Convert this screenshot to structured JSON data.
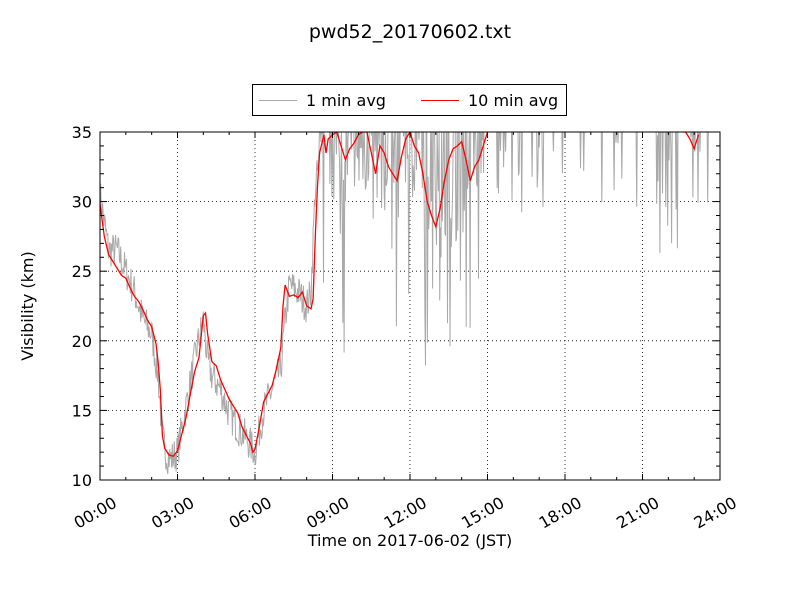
{
  "chart_data": {
    "type": "line",
    "title": "pwd52_20170602.txt",
    "xlabel": "Time on 2017-06-02 (JST)",
    "ylabel": "Visibility (km)",
    "x_ticks": [
      "00:00",
      "03:00",
      "06:00",
      "09:00",
      "12:00",
      "15:00",
      "18:00",
      "21:00",
      "24:00"
    ],
    "y_ticks": [
      10,
      15,
      20,
      25,
      30,
      35
    ],
    "xlim": [
      "2017-06-02 00:00",
      "2017-06-03 00:00"
    ],
    "ylim": [
      10,
      35
    ],
    "grid": true,
    "legend_position": "top-center",
    "series": [
      {
        "name": "1 min avg",
        "color": "#a9a9a9",
        "style": "noisy",
        "x": [
          "00:00",
          "00:20",
          "00:40",
          "01:00",
          "01:20",
          "01:40",
          "02:00",
          "02:15",
          "02:25",
          "02:35",
          "02:45",
          "03:00",
          "03:15",
          "03:30",
          "03:45",
          "04:00",
          "04:10",
          "04:20",
          "04:40",
          "05:00",
          "05:20",
          "05:40",
          "05:50",
          "06:00",
          "06:20",
          "06:40",
          "07:00",
          "07:10",
          "07:20",
          "07:40",
          "08:00",
          "08:10",
          "08:20",
          "08:35",
          "08:45",
          "09:00",
          "09:30",
          "10:00",
          "10:30",
          "11:00",
          "11:30",
          "12:00",
          "12:30",
          "13:00",
          "13:20",
          "13:40",
          "14:00",
          "14:20",
          "15:00",
          "16:00",
          "17:00",
          "18:00",
          "19:00",
          "20:00",
          "21:00",
          "21:30",
          "22:00",
          "22:30",
          "23:00",
          "23:20",
          "23:40",
          "24:00"
        ],
        "y": [
          30.5,
          26.5,
          26.5,
          25,
          23.5,
          21.5,
          20.5,
          17.5,
          13,
          11.8,
          11.5,
          12,
          14.5,
          17,
          19.5,
          21.5,
          18.5,
          17.5,
          16.5,
          14.8,
          13.8,
          13,
          12.5,
          12,
          15,
          16.5,
          18,
          21.5,
          24,
          23.5,
          22.5,
          23.5,
          31,
          34,
          35,
          33,
          32,
          33,
          34,
          32,
          34,
          33,
          31,
          30,
          28,
          29,
          32,
          33,
          35,
          35,
          35,
          35,
          35,
          35,
          35,
          35,
          35,
          35,
          35,
          35,
          35,
          35
        ]
      },
      {
        "name": "10 min avg",
        "color": "#ff0000",
        "style": "smooth",
        "x": [
          "00:00",
          "00:10",
          "00:20",
          "00:30",
          "00:40",
          "00:50",
          "01:00",
          "01:10",
          "01:20",
          "01:30",
          "01:40",
          "01:50",
          "02:00",
          "02:10",
          "02:15",
          "02:20",
          "02:25",
          "02:30",
          "02:40",
          "02:50",
          "03:00",
          "03:10",
          "03:20",
          "03:30",
          "03:40",
          "03:50",
          "04:00",
          "04:05",
          "04:10",
          "04:20",
          "04:30",
          "04:40",
          "04:50",
          "05:00",
          "05:10",
          "05:20",
          "05:30",
          "05:40",
          "05:50",
          "05:55",
          "06:00",
          "06:10",
          "06:20",
          "06:30",
          "06:40",
          "06:50",
          "07:00",
          "07:05",
          "07:10",
          "07:20",
          "07:30",
          "07:40",
          "07:50",
          "08:00",
          "08:10",
          "08:15",
          "08:20",
          "08:25",
          "08:30",
          "08:40",
          "08:45",
          "08:50",
          "09:00",
          "09:10",
          "09:20",
          "09:30",
          "09:40",
          "09:50",
          "10:00",
          "10:10",
          "10:20",
          "10:30",
          "10:40",
          "10:50",
          "11:00",
          "11:10",
          "11:20",
          "11:30",
          "11:40",
          "11:50",
          "12:00",
          "12:10",
          "12:20",
          "12:30",
          "12:40",
          "12:50",
          "13:00",
          "13:10",
          "13:20",
          "13:30",
          "13:40",
          "13:50",
          "14:00",
          "14:10",
          "14:20",
          "14:30",
          "14:40",
          "14:50",
          "15:00",
          "22:40",
          "22:50",
          "23:00",
          "23:10"
        ],
        "y": [
          29.8,
          27.5,
          26.2,
          25.7,
          25.2,
          24.7,
          24.5,
          23.8,
          23.2,
          22.8,
          22.2,
          21.5,
          21,
          19.8,
          18.5,
          16.5,
          13.2,
          12.3,
          11.8,
          11.7,
          12.1,
          13.3,
          14.5,
          16.2,
          17.8,
          18.8,
          21.8,
          22,
          20.5,
          18.5,
          18.2,
          17.2,
          16.5,
          15.8,
          15.3,
          14.8,
          13.8,
          13.2,
          12.6,
          12,
          12.2,
          13.8,
          15.6,
          16.2,
          16.8,
          18,
          19.5,
          22.5,
          24,
          23.2,
          23.3,
          23.1,
          23.5,
          22.5,
          22.3,
          23,
          27.5,
          31,
          33.5,
          34.8,
          33.5,
          34.5,
          34.8,
          35,
          34,
          33,
          33.8,
          34.2,
          34.8,
          35,
          35,
          33.5,
          32,
          34,
          33.5,
          32.5,
          32,
          31.5,
          33.2,
          34.5,
          35,
          34,
          33.5,
          32,
          30,
          29,
          28.2,
          29.5,
          31.5,
          33,
          33.8,
          34,
          34.3,
          33,
          31.5,
          32.5,
          33,
          34,
          35,
          35,
          34.5,
          33.8,
          34.8
        ]
      }
    ]
  }
}
